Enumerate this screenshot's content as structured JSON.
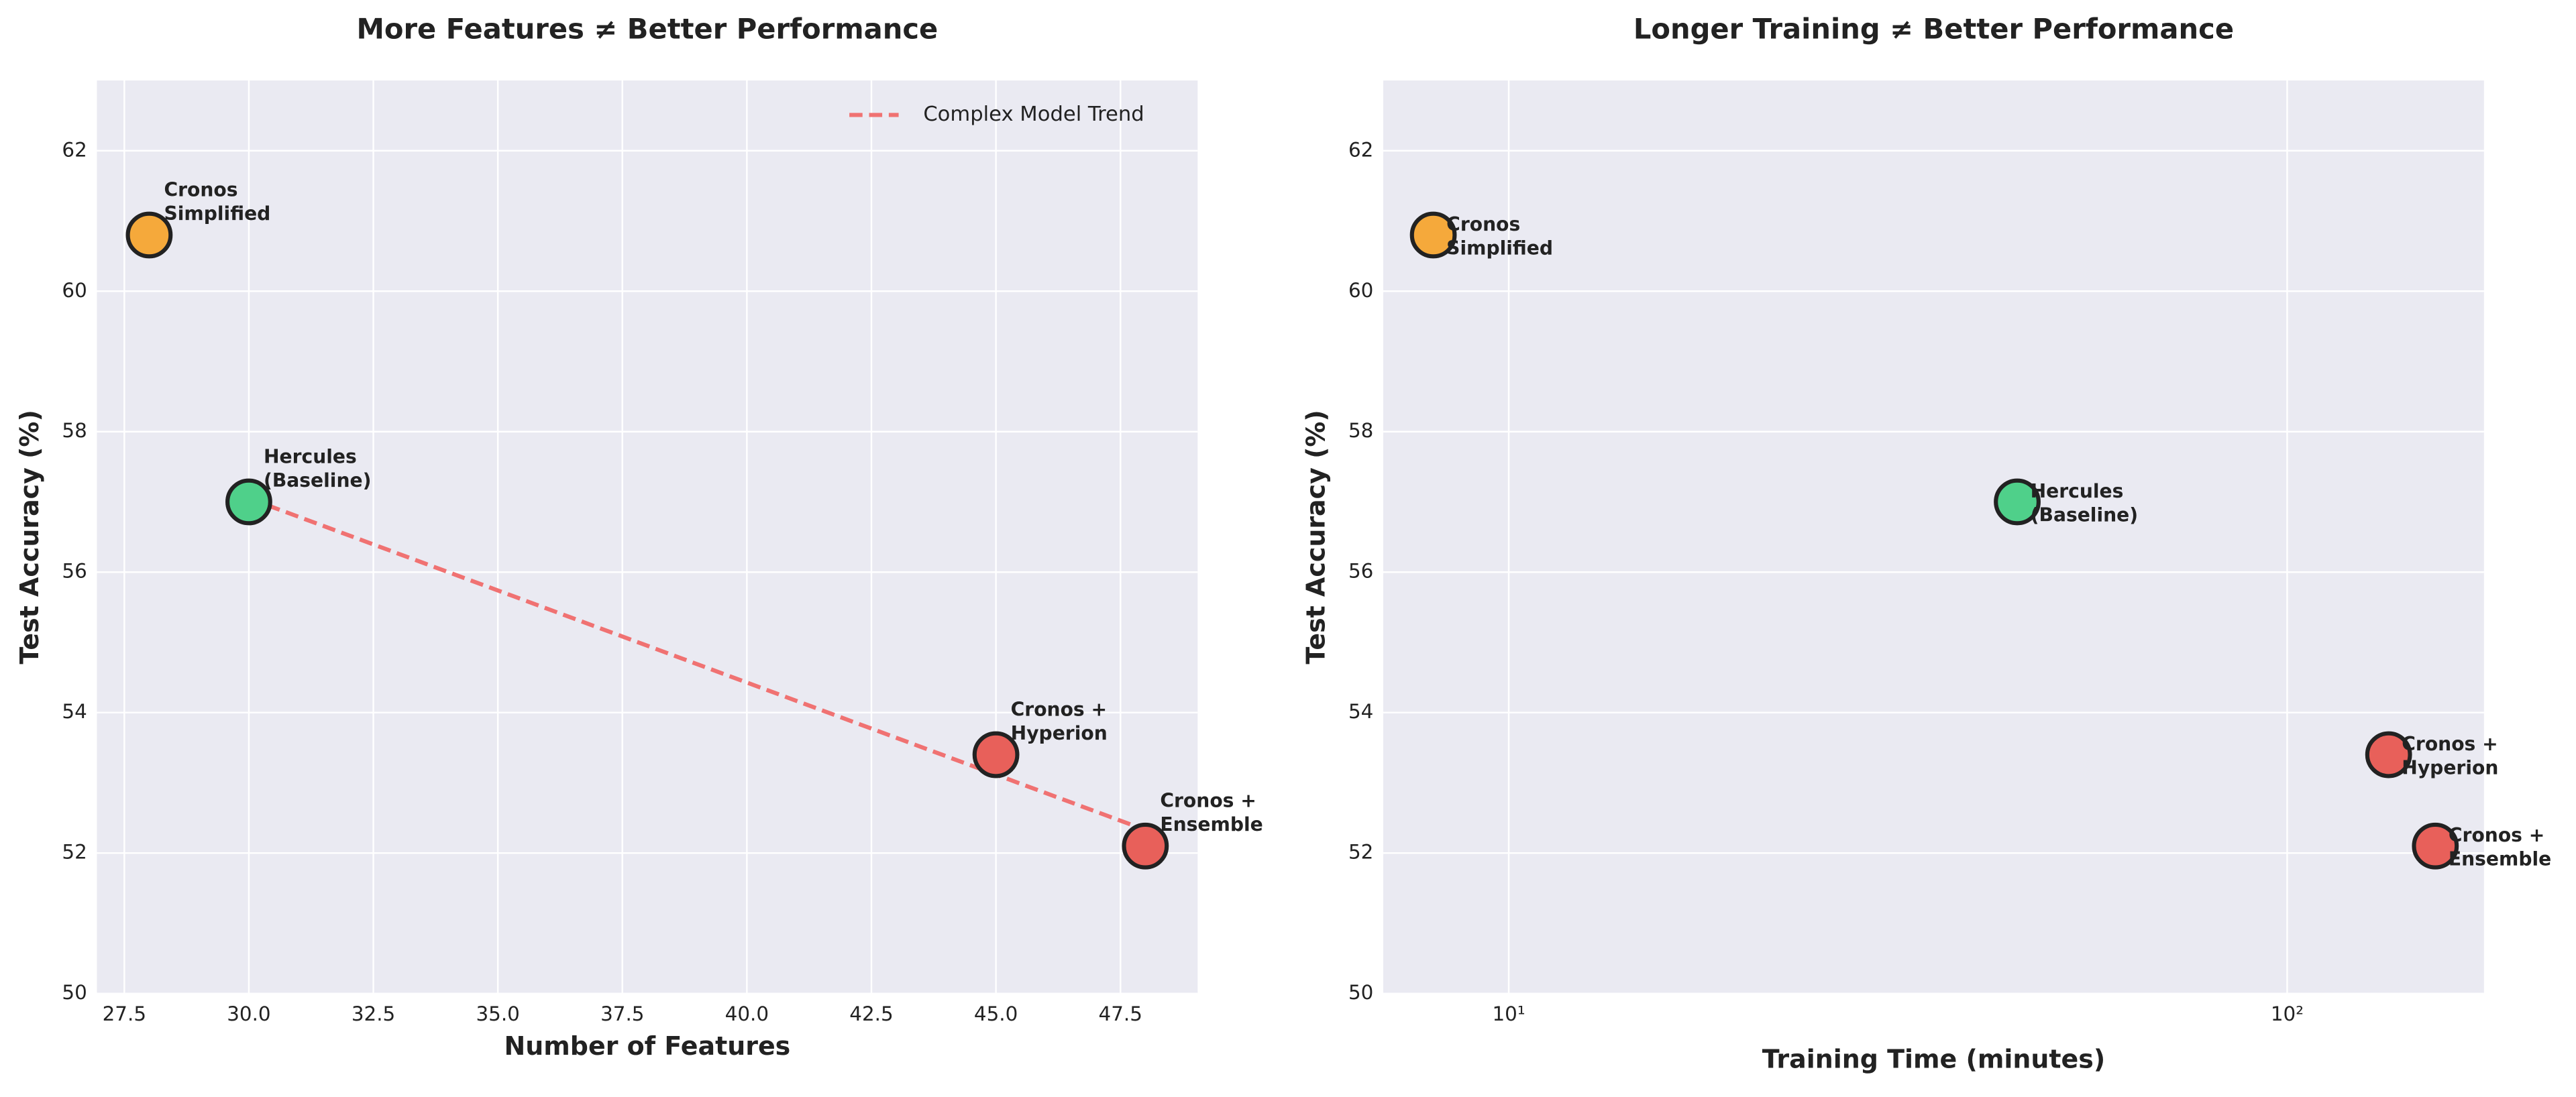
{
  "chart_data": [
    {
      "type": "scatter",
      "title": "More Features ≠ Better Performance",
      "xlabel": "Number of Features",
      "ylabel": "Test Accuracy (%)",
      "xscale": "linear",
      "xlim": [
        26.95,
        49.05
      ],
      "ylim": [
        50,
        63
      ],
      "xticks": [
        27.5,
        {
          "value": 30,
          "label": "30.0"
        },
        32.5,
        {
          "value": 35,
          "label": "35.0"
        },
        37.5,
        {
          "value": 40,
          "label": "40.0"
        },
        42.5,
        {
          "value": 45,
          "label": "45.0"
        },
        47.5
      ],
      "yticks": [
        50,
        52,
        54,
        56,
        58,
        60,
        62
      ],
      "grid": true,
      "legend": "upper right",
      "x": [
        28,
        30,
        45,
        48
      ],
      "values": [
        60.8,
        57,
        53.4,
        52.1
      ],
      "colors": [
        "#f5a93b",
        "#4fd08a",
        "#e8605a",
        "#e8605a"
      ],
      "point_labels": [
        [
          "Cronos",
          "Simplified"
        ],
        [
          "Hercules",
          "(Baseline)"
        ],
        [
          "Cronos +",
          "Hyperion"
        ],
        [
          "Cronos +",
          "Ensemble"
        ]
      ],
      "series": [
        {
          "name": "Complex Model Trend",
          "color": "#f07272",
          "x": [
            30,
            48
          ],
          "values": [
            57.05,
            52.33
          ]
        }
      ]
    },
    {
      "type": "scatter",
      "title": "Longer Training ≠ Better Performance",
      "xlabel": "Training Time (minutes)",
      "ylabel": "Test Accuracy (%)",
      "xscale": "log",
      "xlim": [
        6.9,
        179
      ],
      "ylim": [
        50,
        63
      ],
      "xticks": [
        {
          "value": 10,
          "label": "10¹"
        },
        {
          "value": 100,
          "label": "10²"
        }
      ],
      "yticks": [
        50,
        52,
        54,
        56,
        58,
        60,
        62
      ],
      "grid": true,
      "x": [
        8,
        45,
        135,
        155
      ],
      "values": [
        60.8,
        57,
        53.4,
        52.1
      ],
      "colors": [
        "#f5a93b",
        "#4fd08a",
        "#e8605a",
        "#e8605a"
      ],
      "point_labels": [
        [
          "Cronos",
          "Simplified"
        ],
        [
          "Hercules",
          "(Baseline)"
        ],
        [
          "Cronos +",
          "Hyperion"
        ],
        [
          "Cronos +",
          "Ensemble"
        ]
      ]
    }
  ]
}
